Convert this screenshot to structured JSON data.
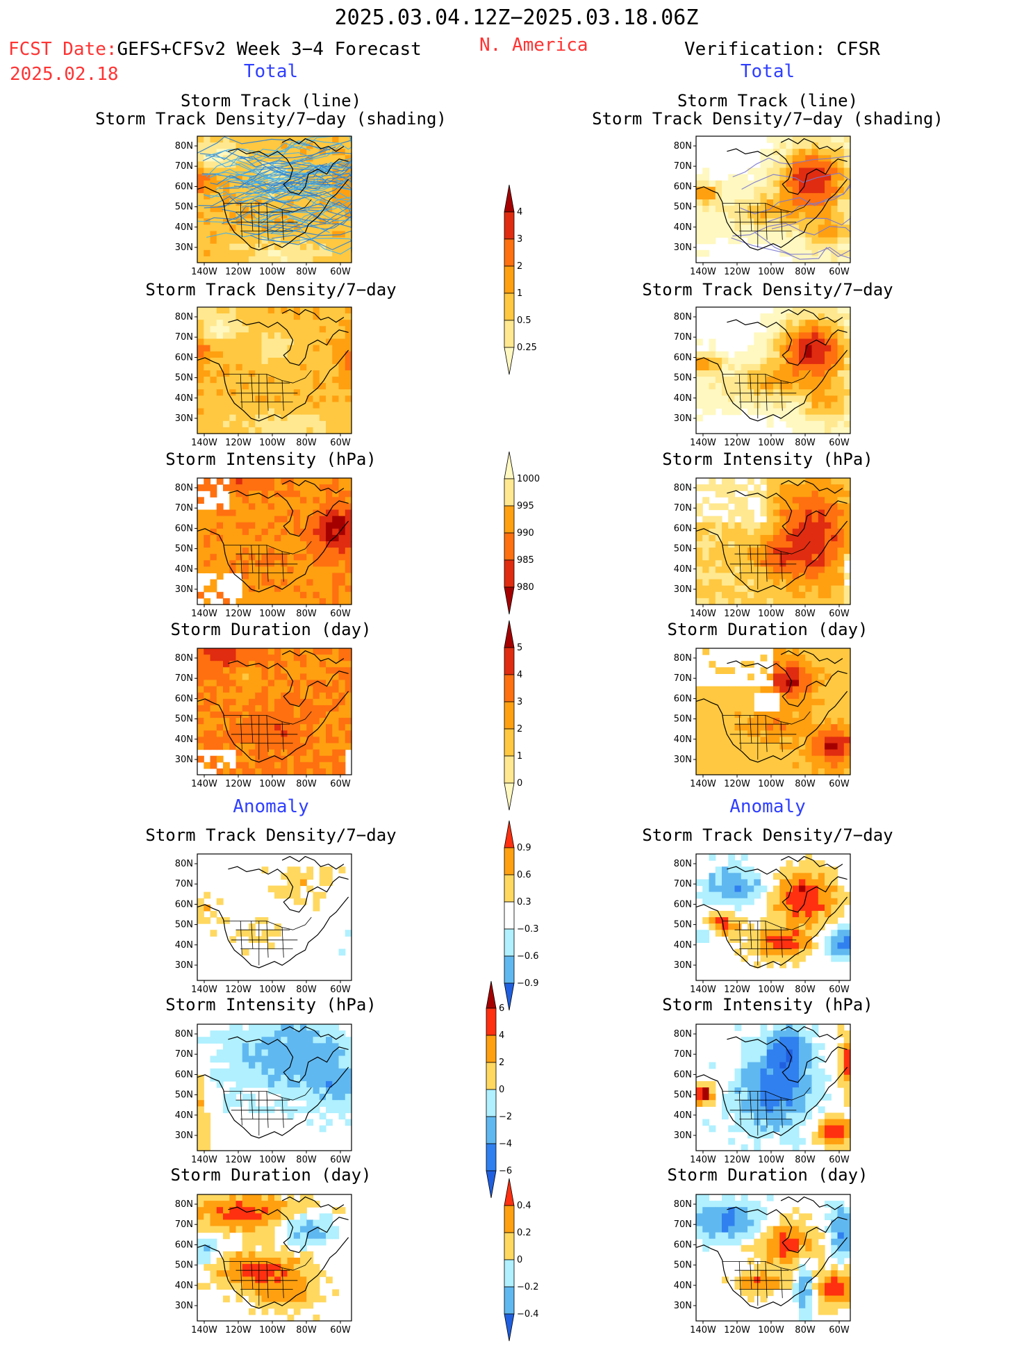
{
  "header": {
    "date_range": "2025.03.04.12Z−2025.03.18.06Z",
    "fcst_label": "FCST Date:",
    "fcst_model": "GEFS+CFSv2 Week 3−4 Forecast",
    "fcst_date": "2025.02.18",
    "region": "N. America",
    "verification": "Verification: CFSR"
  },
  "sections": {
    "total": "Total",
    "anomaly": "Anomaly"
  },
  "panel_titles": {
    "track_line": "Storm Track (line)",
    "track_shading": "Storm Track Density/7−day (shading)",
    "density": "Storm Track Density/7−day",
    "intensity": "Storm Intensity (hPa)",
    "duration": "Storm Duration (day)"
  },
  "map_axes": {
    "lat_labels": [
      "80N",
      "70N",
      "60N",
      "50N",
      "40N",
      "30N"
    ],
    "lon_labels": [
      "140W",
      "120W",
      "100W",
      "80W",
      "60W"
    ]
  },
  "colorbars": {
    "density_total": {
      "labels": [
        "4",
        "3",
        "2",
        "1",
        "0.5",
        "0.25"
      ],
      "colors": [
        "#a50000",
        "#e02c10",
        "#ff7010",
        "#ffa010",
        "#ffc840",
        "#ffe890",
        "#fff8c0"
      ]
    },
    "intensity_total": {
      "labels": [
        "1000",
        "995",
        "990",
        "985",
        "980"
      ],
      "colors": [
        "#fff8c0",
        "#ffe890",
        "#ffa010",
        "#ff7010",
        "#e02c10",
        "#a50000"
      ]
    },
    "duration_total": {
      "labels": [
        "5",
        "4",
        "3",
        "2",
        "1",
        "0"
      ],
      "colors": [
        "#a50000",
        "#e02c10",
        "#ff7010",
        "#ffa010",
        "#ffc840",
        "#ffe890",
        "#fff8c0"
      ]
    },
    "density_anom": {
      "labels": [
        "0.9",
        "0.6",
        "0.3",
        "−0.3",
        "−0.6",
        "−0.9"
      ],
      "colors": [
        "#ff3010",
        "#ffa010",
        "#ffd860",
        "#ffffff",
        "#b0f0ff",
        "#60b8f0",
        "#2060e0"
      ]
    },
    "intensity_anom": {
      "labels": [
        "6",
        "4",
        "2",
        "0",
        "−2",
        "−4",
        "−6"
      ],
      "colors": [
        "#a50000",
        "#ff3010",
        "#ffa010",
        "#ffd860",
        "#b0f0ff",
        "#60b8f0",
        "#3080f0",
        "#2060e0"
      ]
    },
    "duration_anom": {
      "labels": [
        "0.4",
        "0.2",
        "0",
        "−0.2",
        "−0.4"
      ],
      "colors": [
        "#ff3010",
        "#ffa010",
        "#ffd860",
        "#b0f0ff",
        "#60b8f0",
        "#2060e0"
      ]
    }
  }
}
